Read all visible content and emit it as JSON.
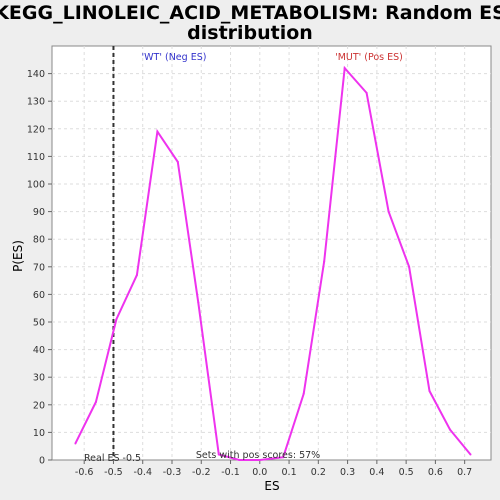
{
  "chart_data": {
    "type": "line",
    "title_line1": "KEGG_LINOLEIC_ACID_METABOLISM: Random ES",
    "title_line2": "distribution",
    "xlabel": "ES",
    "ylabel": "P(ES)",
    "xlim": [
      -0.71,
      0.79
    ],
    "ylim": [
      0,
      150
    ],
    "x_ticks": [
      -0.6,
      -0.5,
      -0.4,
      -0.3,
      -0.2,
      -0.1,
      0.0,
      0.1,
      0.2,
      0.3,
      0.4,
      0.5,
      0.6,
      0.7
    ],
    "x_tick_labels": [
      "-0.6",
      "-0.5",
      "-0.4",
      "-0.3",
      "-0.2",
      "-0.1",
      "0.0",
      "0.1",
      "0.2",
      "0.3",
      "0.4",
      "0.5",
      "0.6",
      "0.7"
    ],
    "y_ticks": [
      0,
      10,
      20,
      30,
      40,
      50,
      60,
      70,
      80,
      90,
      100,
      110,
      120,
      130,
      140
    ],
    "y_tick_labels": [
      "0",
      "10",
      "20",
      "30",
      "40",
      "50",
      "60",
      "70",
      "80",
      "90",
      "100",
      "110",
      "120",
      "130",
      "140"
    ],
    "grid": true,
    "series": [
      {
        "color": "#ee33ee",
        "x": [
          -0.63,
          -0.56,
          -0.49,
          -0.42,
          -0.35,
          -0.28,
          -0.21,
          -0.14,
          -0.07,
          0.0,
          0.08,
          0.15,
          0.22,
          0.29,
          0.365,
          0.44,
          0.51,
          0.58,
          0.65,
          0.72
        ],
        "y": [
          6,
          21,
          51,
          67,
          119,
          108,
          57,
          2,
          0,
          0,
          1,
          24,
          72,
          142,
          133,
          90,
          70,
          25,
          11,
          2
        ]
      }
    ],
    "real_es": -0.5,
    "real_es_label": "Real ES -0.5",
    "neg_label": "'WT' (Neg ES)",
    "pos_label": "'MUT' (Pos ES)",
    "pos_scores_label": "Sets with pos scores: 57%",
    "colors": {
      "line": "#ee33ee",
      "neg_label": "#3333cc",
      "pos_label": "#cc3333",
      "grid": "#dddddd"
    }
  }
}
